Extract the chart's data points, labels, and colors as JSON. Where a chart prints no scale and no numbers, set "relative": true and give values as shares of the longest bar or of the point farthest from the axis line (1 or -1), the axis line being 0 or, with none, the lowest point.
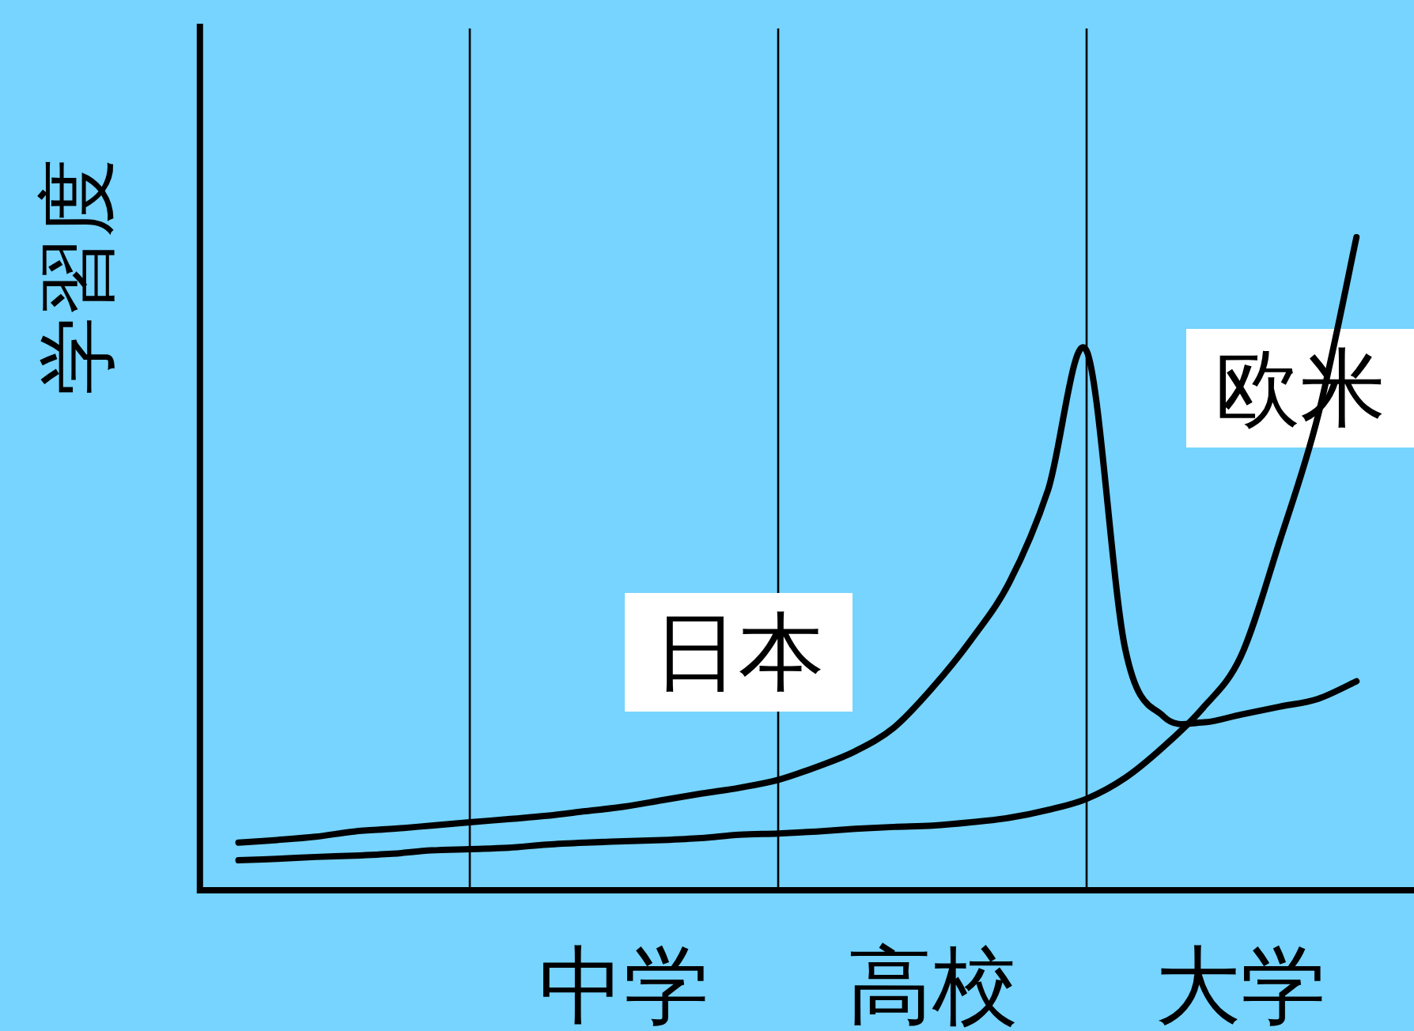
{
  "chart_data": {
    "type": "line",
    "relative": true,
    "ylabel": "学習度",
    "tick_labels": "x",
    "categories": [
      null,
      null,
      null,
      null,
      null,
      null,
      null,
      null,
      null,
      null,
      null,
      "中学",
      null,
      null,
      null,
      null,
      null,
      null,
      null,
      "高校",
      null,
      null,
      null,
      null,
      null,
      null,
      null,
      "大学",
      null,
      null,
      null,
      null
    ],
    "series": [
      {
        "name": "日本",
        "color": "#000000",
        "values": [
          null,
          0.073,
          0.077,
          0.082,
          0.09,
          0.094,
          0.099,
          0.104,
          0.109,
          0.114,
          0.121,
          0.128,
          0.138,
          0.148,
          0.157,
          0.169,
          0.189,
          0.213,
          0.249,
          0.31,
          0.383,
          0.472,
          0.613,
          0.826,
          0.37,
          0.266,
          0.257,
          0.269,
          0.281,
          0.293,
          0.32,
          null
        ]
      },
      {
        "name": "欧米",
        "color": "#000000",
        "values": [
          null,
          0.046,
          0.048,
          0.051,
          0.053,
          0.056,
          0.061,
          0.063,
          0.065,
          0.07,
          0.073,
          0.075,
          0.077,
          0.08,
          0.085,
          0.087,
          0.09,
          0.094,
          0.097,
          0.099,
          0.104,
          0.111,
          0.123,
          0.14,
          0.172,
          0.22,
          0.278,
          0.358,
          0.533,
          0.726,
          1,
          null
        ]
      }
    ]
  }
}
